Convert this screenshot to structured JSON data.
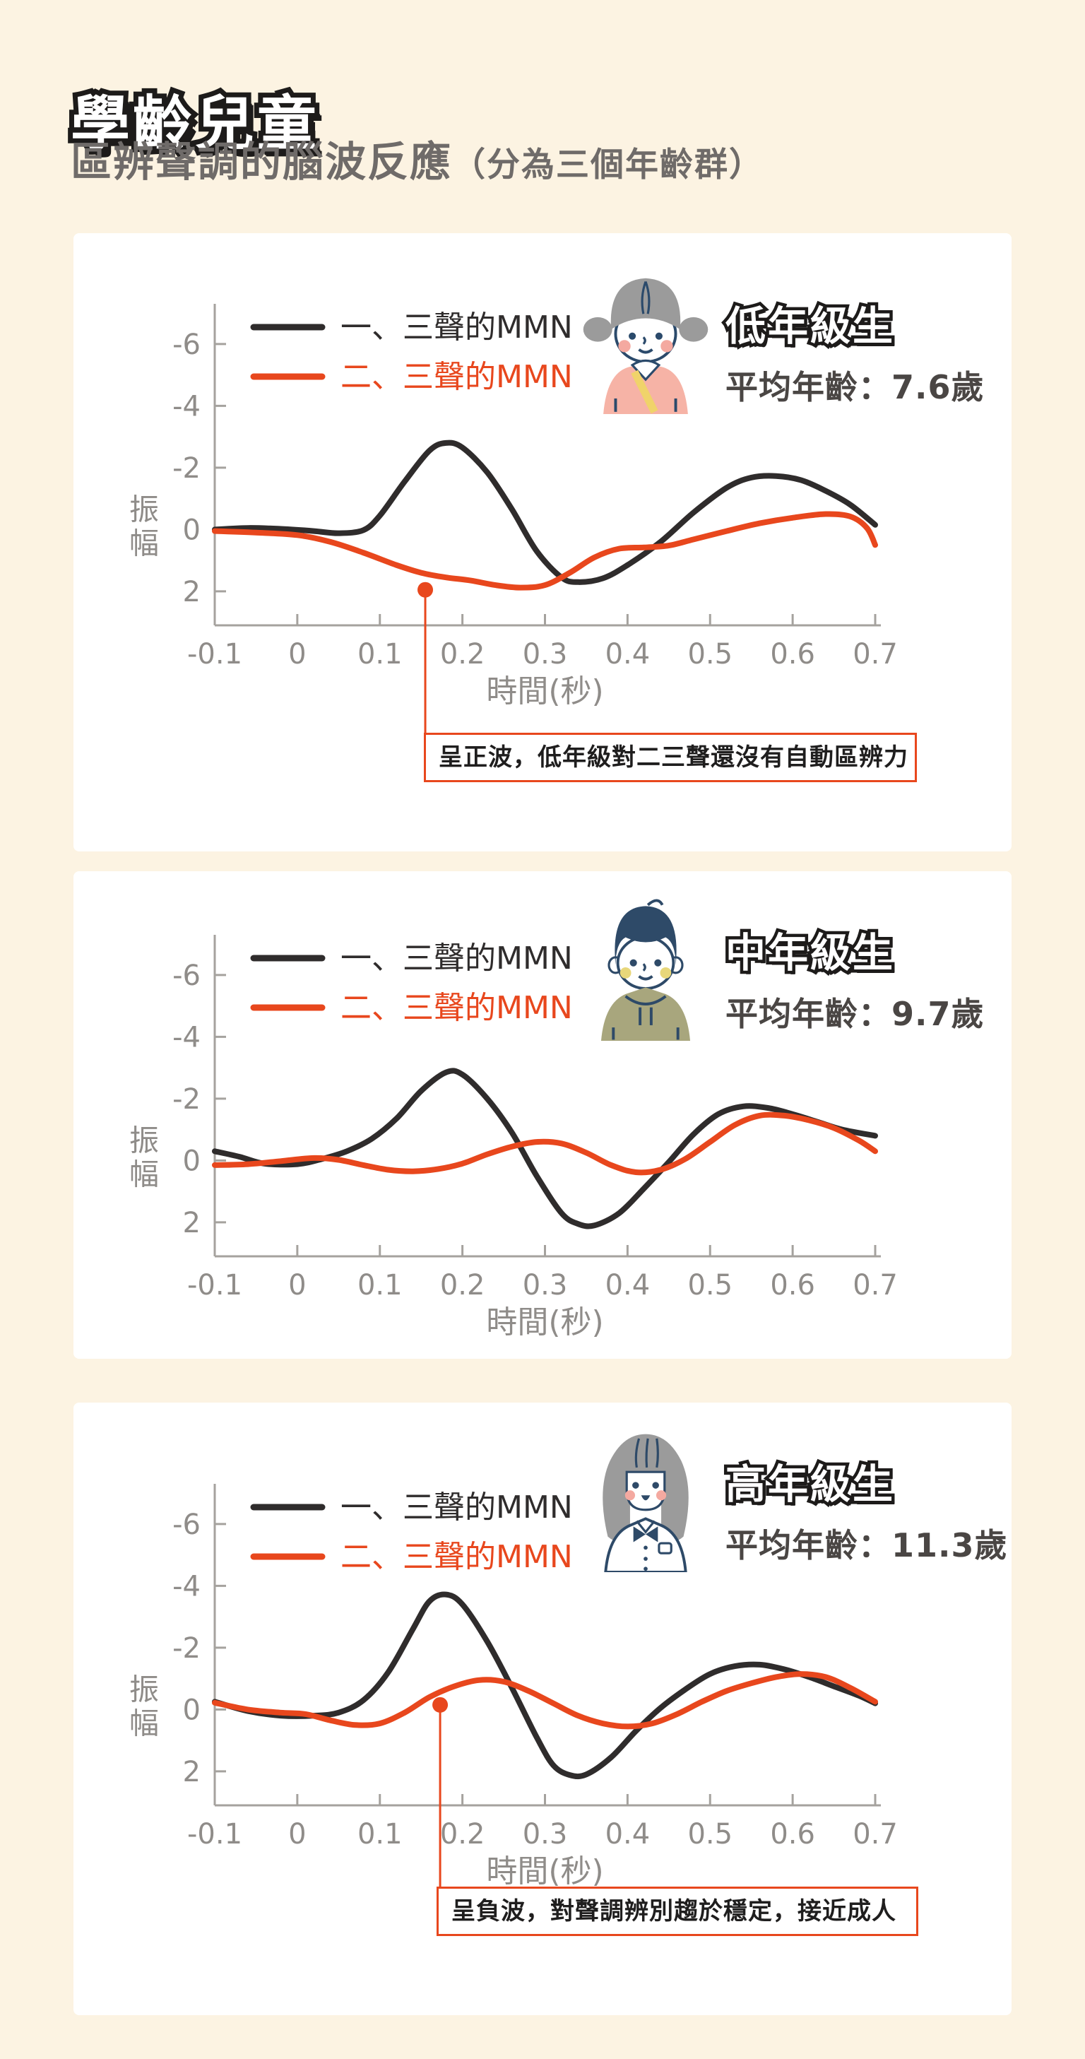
{
  "page": {
    "title": "學齡兒童",
    "subtitle": "區辨聲調的腦波反應",
    "subtitle_note": "（分為三個年齡群）"
  },
  "colors": {
    "background": "#FCF3E2",
    "card": "#FFFFFF",
    "series1": "#2F2C2C",
    "series2": "#E8471D",
    "axis": "#A5A29E",
    "tick_text": "#8F8C89",
    "annotation_border": "#E8471D",
    "subtitle_text": "#6F6B69",
    "age_text": "#4A4644"
  },
  "axis": {
    "ylabel": "振幅",
    "xlabel": "時間(秒)",
    "y_ticks": [
      "-6",
      "-4",
      "-2",
      "0",
      "2"
    ],
    "x_ticks": [
      "-0.1",
      "0",
      "0.1",
      "0.2",
      "0.3",
      "0.4",
      "0.5",
      "0.6",
      "0.7"
    ]
  },
  "legend": [
    "一、三聲的MMN",
    "二、三聲的MMN"
  ],
  "chart_data": [
    {
      "type": "line",
      "group_label": "低年級生",
      "avg_age_label": "平均年齡：7.6歲",
      "avatar": "younger-girl",
      "xlabel": "時間(秒)",
      "ylabel": "振幅",
      "y_axis_inverted": true,
      "x_range": [
        -0.1,
        0.7
      ],
      "y_range_top_to_bottom": [
        -7.3,
        3.1
      ],
      "series": [
        {
          "name": "一、三聲的MMN",
          "color_key": "series1",
          "points": [
            [
              -0.1,
              0.0
            ],
            [
              -0.06,
              -0.05
            ],
            [
              -0.02,
              -0.02
            ],
            [
              0.02,
              0.05
            ],
            [
              0.05,
              0.12
            ],
            [
              0.08,
              0.02
            ],
            [
              0.1,
              -0.45
            ],
            [
              0.13,
              -1.55
            ],
            [
              0.16,
              -2.55
            ],
            [
              0.18,
              -2.8
            ],
            [
              0.2,
              -2.65
            ],
            [
              0.23,
              -1.85
            ],
            [
              0.26,
              -0.65
            ],
            [
              0.29,
              0.7
            ],
            [
              0.32,
              1.55
            ],
            [
              0.34,
              1.7
            ],
            [
              0.37,
              1.58
            ],
            [
              0.4,
              1.15
            ],
            [
              0.44,
              0.4
            ],
            [
              0.48,
              -0.55
            ],
            [
              0.52,
              -1.35
            ],
            [
              0.55,
              -1.68
            ],
            [
              0.58,
              -1.73
            ],
            [
              0.61,
              -1.6
            ],
            [
              0.64,
              -1.25
            ],
            [
              0.67,
              -0.8
            ],
            [
              0.7,
              -0.15
            ]
          ]
        },
        {
          "name": "二、三聲的MMN",
          "color_key": "series2",
          "points": [
            [
              -0.1,
              0.05
            ],
            [
              -0.05,
              0.1
            ],
            [
              0.0,
              0.18
            ],
            [
              0.04,
              0.4
            ],
            [
              0.08,
              0.75
            ],
            [
              0.12,
              1.15
            ],
            [
              0.15,
              1.4
            ],
            [
              0.18,
              1.55
            ],
            [
              0.21,
              1.65
            ],
            [
              0.24,
              1.8
            ],
            [
              0.27,
              1.88
            ],
            [
              0.3,
              1.8
            ],
            [
              0.33,
              1.4
            ],
            [
              0.36,
              0.9
            ],
            [
              0.39,
              0.62
            ],
            [
              0.42,
              0.58
            ],
            [
              0.45,
              0.52
            ],
            [
              0.48,
              0.32
            ],
            [
              0.52,
              0.05
            ],
            [
              0.56,
              -0.2
            ],
            [
              0.6,
              -0.38
            ],
            [
              0.64,
              -0.5
            ],
            [
              0.67,
              -0.42
            ],
            [
              0.69,
              -0.05
            ],
            [
              0.7,
              0.5
            ]
          ]
        }
      ],
      "marker": {
        "series": "二、三聲的MMN",
        "x": 0.155,
        "y": 1.95
      },
      "annotation": "呈正波，低年級對二三聲還沒有自動區辨力"
    },
    {
      "type": "line",
      "group_label": "中年級生",
      "avg_age_label": "平均年齡：9.7歲",
      "avatar": "boy",
      "xlabel": "時間(秒)",
      "ylabel": "振幅",
      "y_axis_inverted": true,
      "x_range": [
        -0.1,
        0.7
      ],
      "y_range_top_to_bottom": [
        -7.3,
        3.1
      ],
      "series": [
        {
          "name": "一、三聲的MMN",
          "color_key": "series1",
          "points": [
            [
              -0.1,
              -0.3
            ],
            [
              -0.07,
              -0.12
            ],
            [
              -0.04,
              0.1
            ],
            [
              0.0,
              0.12
            ],
            [
              0.03,
              -0.05
            ],
            [
              0.06,
              -0.3
            ],
            [
              0.09,
              -0.7
            ],
            [
              0.12,
              -1.35
            ],
            [
              0.15,
              -2.25
            ],
            [
              0.18,
              -2.85
            ],
            [
              0.2,
              -2.78
            ],
            [
              0.23,
              -2.0
            ],
            [
              0.26,
              -0.9
            ],
            [
              0.29,
              0.5
            ],
            [
              0.32,
              1.7
            ],
            [
              0.34,
              2.05
            ],
            [
              0.36,
              2.1
            ],
            [
              0.39,
              1.7
            ],
            [
              0.42,
              0.9
            ],
            [
              0.45,
              0.05
            ],
            [
              0.48,
              -0.85
            ],
            [
              0.51,
              -1.5
            ],
            [
              0.54,
              -1.75
            ],
            [
              0.57,
              -1.7
            ],
            [
              0.6,
              -1.5
            ],
            [
              0.63,
              -1.25
            ],
            [
              0.66,
              -1.0
            ],
            [
              0.7,
              -0.8
            ]
          ]
        },
        {
          "name": "二、三聲的MMN",
          "color_key": "series2",
          "points": [
            [
              -0.1,
              0.15
            ],
            [
              -0.06,
              0.12
            ],
            [
              -0.02,
              0.02
            ],
            [
              0.02,
              -0.08
            ],
            [
              0.05,
              -0.02
            ],
            [
              0.08,
              0.15
            ],
            [
              0.11,
              0.3
            ],
            [
              0.14,
              0.35
            ],
            [
              0.17,
              0.28
            ],
            [
              0.2,
              0.1
            ],
            [
              0.23,
              -0.2
            ],
            [
              0.26,
              -0.45
            ],
            [
              0.29,
              -0.6
            ],
            [
              0.32,
              -0.55
            ],
            [
              0.35,
              -0.25
            ],
            [
              0.38,
              0.15
            ],
            [
              0.41,
              0.38
            ],
            [
              0.44,
              0.3
            ],
            [
              0.47,
              -0.05
            ],
            [
              0.5,
              -0.6
            ],
            [
              0.53,
              -1.15
            ],
            [
              0.56,
              -1.45
            ],
            [
              0.59,
              -1.45
            ],
            [
              0.62,
              -1.3
            ],
            [
              0.65,
              -1.05
            ],
            [
              0.68,
              -0.65
            ],
            [
              0.7,
              -0.3
            ]
          ]
        }
      ],
      "marker": null,
      "annotation": null
    },
    {
      "type": "line",
      "group_label": "高年級生",
      "avg_age_label": "平均年齡：11.3歲",
      "avatar": "older-girl",
      "xlabel": "時間(秒)",
      "ylabel": "振幅",
      "y_axis_inverted": true,
      "x_range": [
        -0.1,
        0.7
      ],
      "y_range_top_to_bottom": [
        -7.3,
        3.1
      ],
      "series": [
        {
          "name": "一、三聲的MMN",
          "color_key": "series1",
          "points": [
            [
              -0.1,
              -0.25
            ],
            [
              -0.06,
              0.05
            ],
            [
              -0.02,
              0.2
            ],
            [
              0.02,
              0.2
            ],
            [
              0.05,
              0.1
            ],
            [
              0.08,
              -0.3
            ],
            [
              0.11,
              -1.2
            ],
            [
              0.14,
              -2.6
            ],
            [
              0.16,
              -3.5
            ],
            [
              0.18,
              -3.72
            ],
            [
              0.2,
              -3.4
            ],
            [
              0.23,
              -2.2
            ],
            [
              0.26,
              -0.7
            ],
            [
              0.29,
              0.9
            ],
            [
              0.31,
              1.8
            ],
            [
              0.33,
              2.12
            ],
            [
              0.35,
              2.1
            ],
            [
              0.38,
              1.55
            ],
            [
              0.41,
              0.7
            ],
            [
              0.44,
              -0.05
            ],
            [
              0.47,
              -0.65
            ],
            [
              0.5,
              -1.15
            ],
            [
              0.53,
              -1.4
            ],
            [
              0.56,
              -1.45
            ],
            [
              0.59,
              -1.3
            ],
            [
              0.62,
              -1.05
            ],
            [
              0.65,
              -0.75
            ],
            [
              0.68,
              -0.45
            ],
            [
              0.7,
              -0.2
            ]
          ]
        },
        {
          "name": "二、三聲的MMN",
          "color_key": "series2",
          "points": [
            [
              -0.1,
              -0.22
            ],
            [
              -0.06,
              0.0
            ],
            [
              -0.02,
              0.1
            ],
            [
              0.01,
              0.15
            ],
            [
              0.04,
              0.35
            ],
            [
              0.07,
              0.5
            ],
            [
              0.1,
              0.45
            ],
            [
              0.13,
              0.1
            ],
            [
              0.16,
              -0.4
            ],
            [
              0.19,
              -0.75
            ],
            [
              0.22,
              -0.95
            ],
            [
              0.25,
              -0.9
            ],
            [
              0.28,
              -0.6
            ],
            [
              0.31,
              -0.2
            ],
            [
              0.34,
              0.2
            ],
            [
              0.37,
              0.45
            ],
            [
              0.4,
              0.55
            ],
            [
              0.43,
              0.45
            ],
            [
              0.46,
              0.15
            ],
            [
              0.49,
              -0.25
            ],
            [
              0.52,
              -0.6
            ],
            [
              0.55,
              -0.85
            ],
            [
              0.58,
              -1.05
            ],
            [
              0.61,
              -1.15
            ],
            [
              0.64,
              -1.05
            ],
            [
              0.67,
              -0.7
            ],
            [
              0.7,
              -0.25
            ]
          ]
        }
      ],
      "marker": {
        "series": "二、三聲的MMN",
        "x": 0.173,
        "y": -0.15
      },
      "annotation": "呈負波，對聲調辨別趨於穩定，接近成人"
    }
  ]
}
